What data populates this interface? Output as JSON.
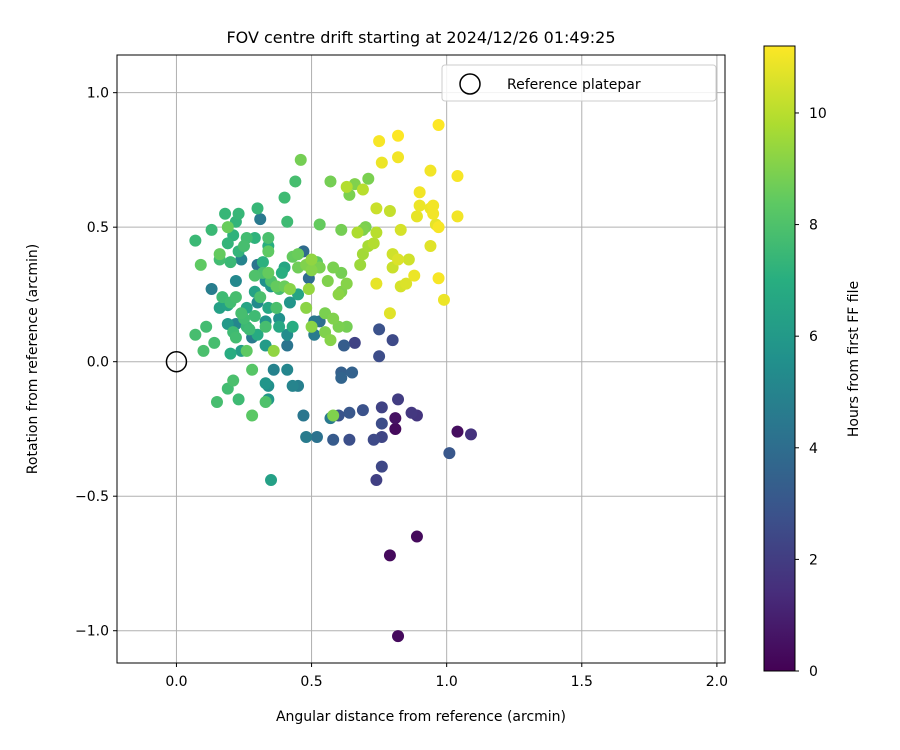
{
  "chart_data": {
    "type": "scatter",
    "title": "FOV centre drift starting at 2024/12/26 01:49:25",
    "xlabel": "Angular distance from reference (arcmin)",
    "ylabel": "Rotation from reference (arcmin)",
    "xlim": [
      -0.22,
      2.03
    ],
    "ylim": [
      -1.12,
      1.14
    ],
    "xticks": [
      0.0,
      0.5,
      1.0,
      1.5,
      2.0
    ],
    "xtick_labels": [
      "0.0",
      "0.5",
      "1.0",
      "1.5",
      "2.0"
    ],
    "yticks": [
      -1.0,
      -0.5,
      0.0,
      0.5,
      1.0
    ],
    "ytick_labels": [
      "−1.0",
      "−0.5",
      "0.0",
      "0.5",
      "1.0"
    ],
    "grid": true,
    "legend": {
      "placement": "top-right",
      "entries": [
        "Reference platepar"
      ]
    },
    "reference_point": {
      "x": 0.0,
      "y": 0.0,
      "label": "Reference platepar"
    },
    "colorbar": {
      "label": "Hours from first FF file",
      "colormap": "viridis",
      "range": [
        0,
        11.2
      ],
      "ticks": [
        0,
        2,
        4,
        6,
        8,
        10
      ],
      "tick_labels": [
        "0",
        "2",
        "4",
        "6",
        "8",
        "10"
      ]
    },
    "points": [
      {
        "x": 0.82,
        "y": -1.02,
        "h": 0.3
      },
      {
        "x": 0.79,
        "y": -0.72,
        "h": 0.3
      },
      {
        "x": 0.89,
        "y": -0.65,
        "h": 0.3
      },
      {
        "x": 1.04,
        "y": -0.26,
        "h": 0.4
      },
      {
        "x": 0.81,
        "y": -0.25,
        "h": 0.3
      },
      {
        "x": 0.81,
        "y": -0.21,
        "h": 0.5
      },
      {
        "x": 1.09,
        "y": -0.27,
        "h": 1.6
      },
      {
        "x": 0.87,
        "y": -0.19,
        "h": 1.8
      },
      {
        "x": 0.89,
        "y": -0.2,
        "h": 1.7
      },
      {
        "x": 0.82,
        "y": -0.14,
        "h": 2.0
      },
      {
        "x": 0.74,
        "y": -0.44,
        "h": 2.1
      },
      {
        "x": 0.76,
        "y": -0.39,
        "h": 2.4
      },
      {
        "x": 0.76,
        "y": -0.28,
        "h": 2.3
      },
      {
        "x": 0.76,
        "y": -0.23,
        "h": 2.6
      },
      {
        "x": 0.73,
        "y": -0.29,
        "h": 2.5
      },
      {
        "x": 0.76,
        "y": -0.17,
        "h": 2.2
      },
      {
        "x": 0.69,
        "y": -0.18,
        "h": 2.8
      },
      {
        "x": 0.64,
        "y": -0.29,
        "h": 2.7
      },
      {
        "x": 0.58,
        "y": -0.29,
        "h": 3.2
      },
      {
        "x": 0.64,
        "y": -0.19,
        "h": 3.0
      },
      {
        "x": 0.6,
        "y": -0.2,
        "h": 2.9
      },
      {
        "x": 0.75,
        "y": 0.02,
        "h": 2.6
      },
      {
        "x": 0.75,
        "y": 0.12,
        "h": 2.8
      },
      {
        "x": 0.8,
        "y": 0.08,
        "h": 2.5
      },
      {
        "x": 0.66,
        "y": 0.07,
        "h": 2.2
      },
      {
        "x": 1.01,
        "y": -0.34,
        "h": 3.0
      },
      {
        "x": 0.62,
        "y": 0.06,
        "h": 3.3
      },
      {
        "x": 0.61,
        "y": -0.06,
        "h": 3.6
      },
      {
        "x": 0.61,
        "y": -0.04,
        "h": 3.4
      },
      {
        "x": 0.65,
        "y": -0.04,
        "h": 3.5
      },
      {
        "x": 0.52,
        "y": -0.28,
        "h": 4.2
      },
      {
        "x": 0.48,
        "y": -0.28,
        "h": 4.6
      },
      {
        "x": 0.47,
        "y": -0.2,
        "h": 4.4
      },
      {
        "x": 0.57,
        "y": -0.21,
        "h": 4.5
      },
      {
        "x": 0.45,
        "y": -0.09,
        "h": 4.8
      },
      {
        "x": 0.43,
        "y": -0.09,
        "h": 5.0
      },
      {
        "x": 0.41,
        "y": -0.03,
        "h": 5.1
      },
      {
        "x": 0.41,
        "y": 0.06,
        "h": 4.3
      },
      {
        "x": 0.51,
        "y": 0.1,
        "h": 4.6
      },
      {
        "x": 0.51,
        "y": 0.15,
        "h": 4.4
      },
      {
        "x": 0.53,
        "y": 0.15,
        "h": 4.0
      },
      {
        "x": 0.36,
        "y": -0.03,
        "h": 4.9
      },
      {
        "x": 0.33,
        "y": -0.08,
        "h": 5.8
      },
      {
        "x": 0.34,
        "y": -0.09,
        "h": 5.5
      },
      {
        "x": 0.34,
        "y": -0.14,
        "h": 5.9
      },
      {
        "x": 0.35,
        "y": -0.44,
        "h": 6.3
      },
      {
        "x": 0.28,
        "y": 0.09,
        "h": 4.6
      },
      {
        "x": 0.3,
        "y": 0.36,
        "h": 4.3
      },
      {
        "x": 0.31,
        "y": 0.53,
        "h": 4.5
      },
      {
        "x": 0.47,
        "y": 0.41,
        "h": 3.9
      },
      {
        "x": 0.49,
        "y": 0.31,
        "h": 4.0
      },
      {
        "x": 0.13,
        "y": 0.27,
        "h": 4.7
      },
      {
        "x": 0.22,
        "y": 0.3,
        "h": 5.2
      },
      {
        "x": 0.22,
        "y": 0.14,
        "h": 5.1
      },
      {
        "x": 0.3,
        "y": 0.22,
        "h": 5.3
      },
      {
        "x": 0.24,
        "y": 0.38,
        "h": 5.0
      },
      {
        "x": 0.33,
        "y": 0.3,
        "h": 5.6
      },
      {
        "x": 0.33,
        "y": 0.15,
        "h": 5.7
      },
      {
        "x": 0.35,
        "y": 0.28,
        "h": 5.9
      },
      {
        "x": 0.42,
        "y": 0.22,
        "h": 5.8
      },
      {
        "x": 0.41,
        "y": 0.1,
        "h": 5.4
      },
      {
        "x": 0.38,
        "y": 0.16,
        "h": 5.6
      },
      {
        "x": 0.33,
        "y": 0.06,
        "h": 6.1
      },
      {
        "x": 0.24,
        "y": 0.04,
        "h": 6.2
      },
      {
        "x": 0.19,
        "y": 0.14,
        "h": 6.0
      },
      {
        "x": 0.16,
        "y": 0.2,
        "h": 6.3
      },
      {
        "x": 0.19,
        "y": 0.21,
        "h": 6.4
      },
      {
        "x": 0.26,
        "y": 0.2,
        "h": 6.5
      },
      {
        "x": 0.29,
        "y": 0.26,
        "h": 6.4
      },
      {
        "x": 0.34,
        "y": 0.2,
        "h": 6.6
      },
      {
        "x": 0.38,
        "y": 0.13,
        "h": 6.7
      },
      {
        "x": 0.3,
        "y": 0.1,
        "h": 6.8
      },
      {
        "x": 0.2,
        "y": 0.03,
        "h": 6.9
      },
      {
        "x": 0.45,
        "y": 0.25,
        "h": 6.5
      },
      {
        "x": 0.4,
        "y": 0.35,
        "h": 6.6
      },
      {
        "x": 0.43,
        "y": 0.13,
        "h": 6.9
      },
      {
        "x": 0.39,
        "y": 0.33,
        "h": 7.0
      },
      {
        "x": 0.32,
        "y": 0.37,
        "h": 7.1
      },
      {
        "x": 0.29,
        "y": 0.46,
        "h": 7.2
      },
      {
        "x": 0.34,
        "y": 0.43,
        "h": 7.0
      },
      {
        "x": 0.23,
        "y": 0.41,
        "h": 7.3
      },
      {
        "x": 0.21,
        "y": 0.47,
        "h": 7.2
      },
      {
        "x": 0.19,
        "y": 0.44,
        "h": 7.3
      },
      {
        "x": 0.18,
        "y": 0.55,
        "h": 7.4
      },
      {
        "x": 0.23,
        "y": 0.55,
        "h": 7.4
      },
      {
        "x": 0.22,
        "y": 0.52,
        "h": 7.3
      },
      {
        "x": 0.13,
        "y": 0.49,
        "h": 7.5
      },
      {
        "x": 0.07,
        "y": 0.45,
        "h": 7.5
      },
      {
        "x": 0.3,
        "y": 0.57,
        "h": 7.4
      },
      {
        "x": 0.4,
        "y": 0.61,
        "h": 7.6
      },
      {
        "x": 0.41,
        "y": 0.52,
        "h": 7.6
      },
      {
        "x": 0.44,
        "y": 0.67,
        "h": 7.8
      },
      {
        "x": 0.16,
        "y": 0.38,
        "h": 7.7
      },
      {
        "x": 0.2,
        "y": 0.37,
        "h": 7.5
      },
      {
        "x": 0.26,
        "y": 0.46,
        "h": 7.7
      },
      {
        "x": 0.34,
        "y": 0.46,
        "h": 7.9
      },
      {
        "x": 0.25,
        "y": 0.43,
        "h": 7.8
      },
      {
        "x": 0.17,
        "y": 0.24,
        "h": 7.6
      },
      {
        "x": 0.2,
        "y": 0.22,
        "h": 7.7
      },
      {
        "x": 0.24,
        "y": 0.18,
        "h": 7.8
      },
      {
        "x": 0.22,
        "y": 0.24,
        "h": 7.8
      },
      {
        "x": 0.25,
        "y": 0.16,
        "h": 7.7
      },
      {
        "x": 0.27,
        "y": 0.12,
        "h": 7.6
      },
      {
        "x": 0.31,
        "y": 0.24,
        "h": 7.9
      },
      {
        "x": 0.29,
        "y": 0.32,
        "h": 8.0
      },
      {
        "x": 0.32,
        "y": 0.33,
        "h": 7.9
      },
      {
        "x": 0.35,
        "y": 0.3,
        "h": 8.0
      },
      {
        "x": 0.38,
        "y": 0.27,
        "h": 7.8
      },
      {
        "x": 0.37,
        "y": 0.2,
        "h": 7.9
      },
      {
        "x": 0.33,
        "y": 0.13,
        "h": 7.8
      },
      {
        "x": 0.29,
        "y": 0.17,
        "h": 7.6
      },
      {
        "x": 0.22,
        "y": 0.09,
        "h": 7.7
      },
      {
        "x": 0.26,
        "y": 0.13,
        "h": 7.5
      },
      {
        "x": 0.21,
        "y": 0.11,
        "h": 7.6
      },
      {
        "x": 0.14,
        "y": 0.07,
        "h": 7.8
      },
      {
        "x": 0.1,
        "y": 0.04,
        "h": 7.9
      },
      {
        "x": 0.11,
        "y": 0.13,
        "h": 7.7
      },
      {
        "x": 0.07,
        "y": 0.1,
        "h": 7.8
      },
      {
        "x": 0.19,
        "y": -0.1,
        "h": 7.7
      },
      {
        "x": 0.15,
        "y": -0.15,
        "h": 7.8
      },
      {
        "x": 0.23,
        "y": -0.14,
        "h": 7.6
      },
      {
        "x": 0.21,
        "y": -0.07,
        "h": 7.9
      },
      {
        "x": 0.33,
        "y": -0.15,
        "h": 8.0
      },
      {
        "x": 0.28,
        "y": -0.2,
        "h": 8.3
      },
      {
        "x": 0.28,
        "y": -0.03,
        "h": 8.2
      },
      {
        "x": 0.26,
        "y": 0.04,
        "h": 8.4
      },
      {
        "x": 0.09,
        "y": 0.36,
        "h": 8.4
      },
      {
        "x": 0.16,
        "y": 0.4,
        "h": 8.5
      },
      {
        "x": 0.19,
        "y": 0.5,
        "h": 8.6
      },
      {
        "x": 0.34,
        "y": 0.33,
        "h": 8.5
      },
      {
        "x": 0.34,
        "y": 0.41,
        "h": 8.4
      },
      {
        "x": 0.37,
        "y": 0.28,
        "h": 8.5
      },
      {
        "x": 0.4,
        "y": 0.28,
        "h": 8.6
      },
      {
        "x": 0.43,
        "y": 0.39,
        "h": 8.5
      },
      {
        "x": 0.45,
        "y": 0.4,
        "h": 8.6
      },
      {
        "x": 0.45,
        "y": 0.35,
        "h": 8.7
      },
      {
        "x": 0.52,
        "y": 0.37,
        "h": 8.4
      },
      {
        "x": 0.53,
        "y": 0.51,
        "h": 8.5
      },
      {
        "x": 0.46,
        "y": 0.75,
        "h": 8.8
      },
      {
        "x": 0.57,
        "y": 0.67,
        "h": 8.8
      },
      {
        "x": 0.64,
        "y": 0.62,
        "h": 8.9
      },
      {
        "x": 0.66,
        "y": 0.66,
        "h": 9.0
      },
      {
        "x": 0.71,
        "y": 0.68,
        "h": 8.9
      },
      {
        "x": 0.61,
        "y": 0.49,
        "h": 8.8
      },
      {
        "x": 0.69,
        "y": 0.49,
        "h": 9.0
      },
      {
        "x": 0.7,
        "y": 0.5,
        "h": 8.9
      },
      {
        "x": 0.58,
        "y": 0.35,
        "h": 8.9
      },
      {
        "x": 0.61,
        "y": 0.33,
        "h": 8.8
      },
      {
        "x": 0.48,
        "y": 0.36,
        "h": 9.0
      },
      {
        "x": 0.5,
        "y": 0.34,
        "h": 9.1
      },
      {
        "x": 0.53,
        "y": 0.35,
        "h": 8.9
      },
      {
        "x": 0.56,
        "y": 0.3,
        "h": 9.0
      },
      {
        "x": 0.63,
        "y": 0.29,
        "h": 9.1
      },
      {
        "x": 0.61,
        "y": 0.26,
        "h": 9.0
      },
      {
        "x": 0.6,
        "y": 0.25,
        "h": 9.2
      },
      {
        "x": 0.55,
        "y": 0.18,
        "h": 8.9
      },
      {
        "x": 0.58,
        "y": 0.16,
        "h": 9.0
      },
      {
        "x": 0.6,
        "y": 0.13,
        "h": 8.9
      },
      {
        "x": 0.63,
        "y": 0.13,
        "h": 8.8
      },
      {
        "x": 0.55,
        "y": 0.11,
        "h": 9.0
      },
      {
        "x": 0.5,
        "y": 0.13,
        "h": 9.2
      },
      {
        "x": 0.57,
        "y": 0.08,
        "h": 9.1
      },
      {
        "x": 0.48,
        "y": 0.2,
        "h": 9.2
      },
      {
        "x": 0.42,
        "y": 0.27,
        "h": 9.1
      },
      {
        "x": 0.36,
        "y": 0.04,
        "h": 9.3
      },
      {
        "x": 0.58,
        "y": -0.2,
        "h": 9.0
      },
      {
        "x": 0.5,
        "y": 0.38,
        "h": 9.3
      },
      {
        "x": 0.49,
        "y": 0.27,
        "h": 9.4
      },
      {
        "x": 0.68,
        "y": 0.36,
        "h": 9.5
      },
      {
        "x": 0.69,
        "y": 0.4,
        "h": 9.6
      },
      {
        "x": 0.71,
        "y": 0.43,
        "h": 9.7
      },
      {
        "x": 0.67,
        "y": 0.48,
        "h": 9.8
      },
      {
        "x": 0.73,
        "y": 0.44,
        "h": 9.9
      },
      {
        "x": 0.74,
        "y": 0.48,
        "h": 10.0
      },
      {
        "x": 0.69,
        "y": 0.64,
        "h": 10.0
      },
      {
        "x": 0.63,
        "y": 0.65,
        "h": 9.9
      },
      {
        "x": 0.74,
        "y": 0.57,
        "h": 10.3
      },
      {
        "x": 0.79,
        "y": 0.56,
        "h": 10.2
      },
      {
        "x": 0.8,
        "y": 0.4,
        "h": 10.4
      },
      {
        "x": 0.8,
        "y": 0.35,
        "h": 10.3
      },
      {
        "x": 0.83,
        "y": 0.49,
        "h": 10.5
      },
      {
        "x": 0.82,
        "y": 0.38,
        "h": 10.6
      },
      {
        "x": 0.86,
        "y": 0.38,
        "h": 10.4
      },
      {
        "x": 0.83,
        "y": 0.28,
        "h": 10.5
      },
      {
        "x": 0.85,
        "y": 0.29,
        "h": 10.6
      },
      {
        "x": 0.79,
        "y": 0.18,
        "h": 10.7
      },
      {
        "x": 0.74,
        "y": 0.29,
        "h": 10.8
      },
      {
        "x": 0.88,
        "y": 0.32,
        "h": 10.9
      },
      {
        "x": 0.89,
        "y": 0.54,
        "h": 10.8
      },
      {
        "x": 0.9,
        "y": 0.58,
        "h": 10.9
      },
      {
        "x": 0.9,
        "y": 0.63,
        "h": 11.0
      },
      {
        "x": 0.94,
        "y": 0.57,
        "h": 10.9
      },
      {
        "x": 0.95,
        "y": 0.58,
        "h": 11.0
      },
      {
        "x": 0.94,
        "y": 0.43,
        "h": 10.7
      },
      {
        "x": 0.96,
        "y": 0.51,
        "h": 10.8
      },
      {
        "x": 0.97,
        "y": 0.5,
        "h": 11.1
      },
      {
        "x": 0.95,
        "y": 0.55,
        "h": 11.0
      },
      {
        "x": 0.94,
        "y": 0.71,
        "h": 11.0
      },
      {
        "x": 1.04,
        "y": 0.69,
        "h": 11.1
      },
      {
        "x": 1.04,
        "y": 0.54,
        "h": 11.0
      },
      {
        "x": 0.97,
        "y": 0.31,
        "h": 11.1
      },
      {
        "x": 0.99,
        "y": 0.23,
        "h": 10.9
      },
      {
        "x": 0.97,
        "y": 0.88,
        "h": 11.2
      },
      {
        "x": 0.82,
        "y": 0.84,
        "h": 11.2
      },
      {
        "x": 0.75,
        "y": 0.82,
        "h": 11.1
      },
      {
        "x": 0.82,
        "y": 0.76,
        "h": 11.0
      },
      {
        "x": 0.76,
        "y": 0.74,
        "h": 10.9
      }
    ]
  }
}
